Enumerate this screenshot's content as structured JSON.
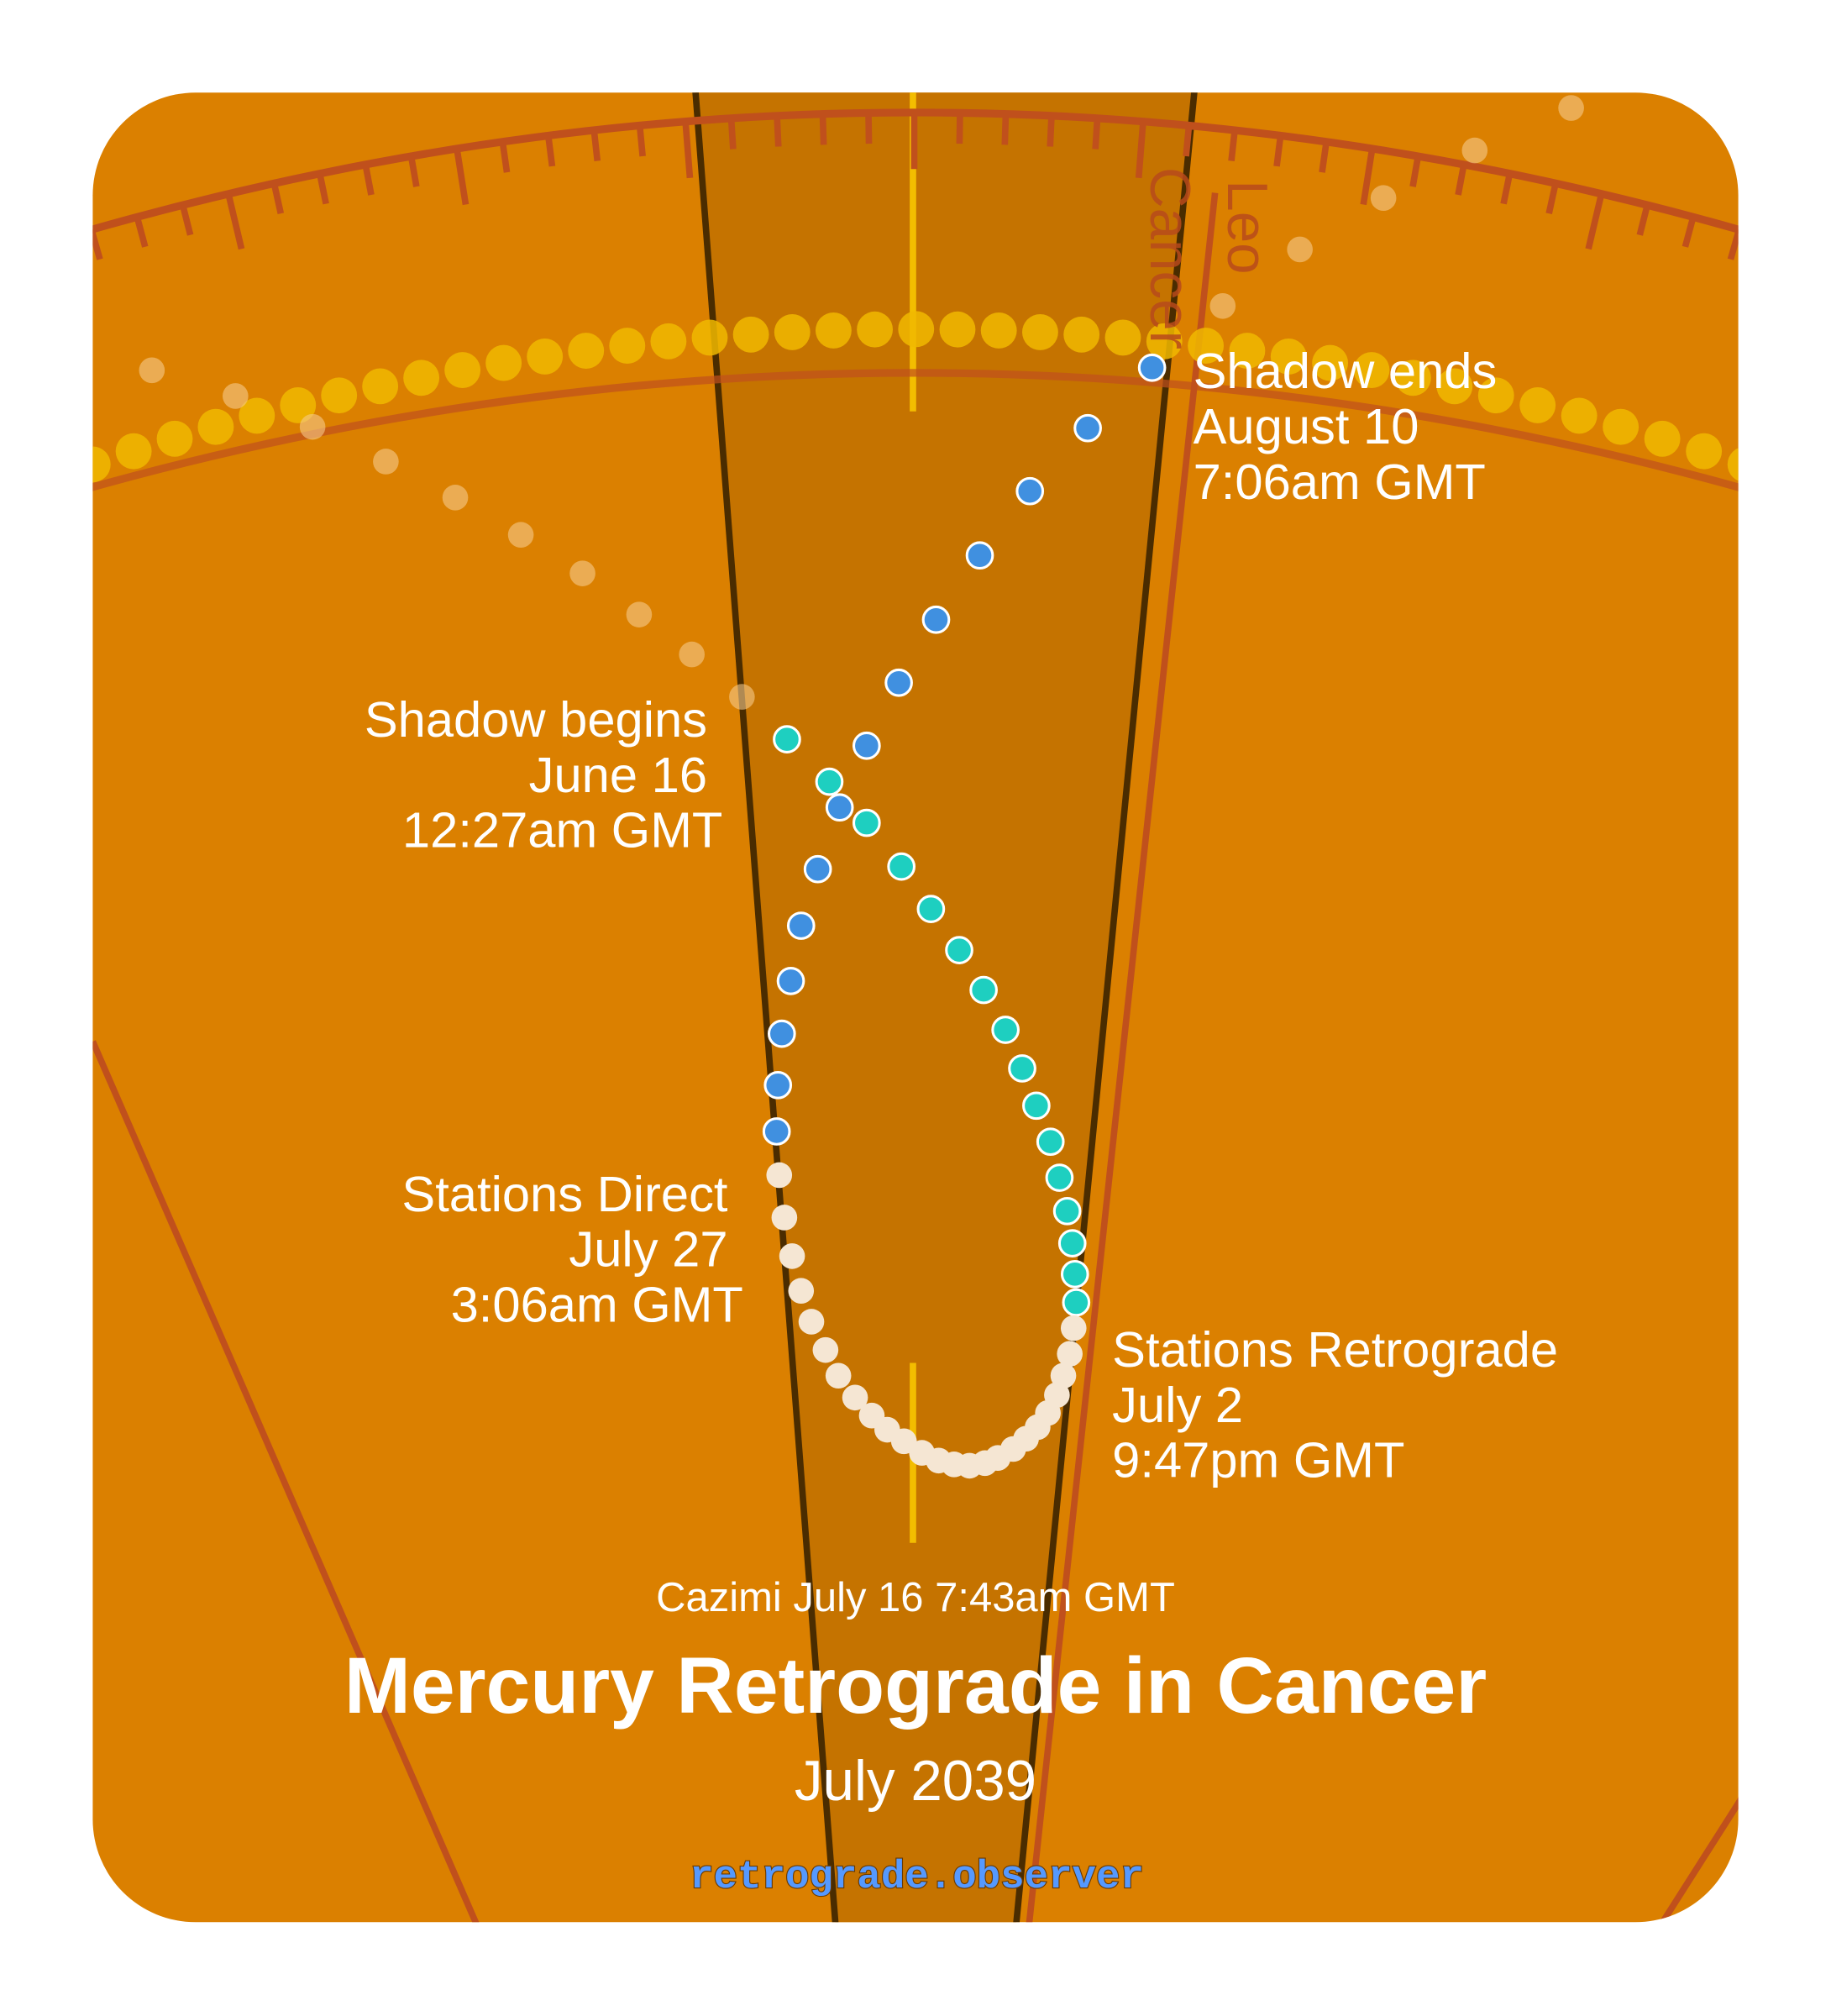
{
  "title": "Mercury Retrograde in Cancer",
  "subtitle": "July 2039",
  "cazimi": "Cazimi July 16 7:43am GMT",
  "website": "retrograde.observer",
  "signs": {
    "left": "Cancer",
    "right": "Leo"
  },
  "events": {
    "shadow_begins": {
      "title": "Shadow begins",
      "date": "June 16",
      "time": "12:27am GMT"
    },
    "stations_retrograde": {
      "title": "Stations Retrograde",
      "date": "July 2",
      "time": "9:47pm GMT"
    },
    "stations_direct": {
      "title": "Stations Direct",
      "date": "July 27",
      "time": "3:06am GMT"
    },
    "shadow_ends": {
      "title": "Shadow ends",
      "date": "August 10",
      "time": "7:06am GMT"
    }
  },
  "colors": {
    "background": "#DB8000",
    "sun_band": "#C57300",
    "pre_shadow": "#1ECFC0",
    "retrograde": "#F5E6D3",
    "post_shadow": "#4090E0",
    "sun_path": "#F0B800",
    "website": "#5599FF"
  }
}
